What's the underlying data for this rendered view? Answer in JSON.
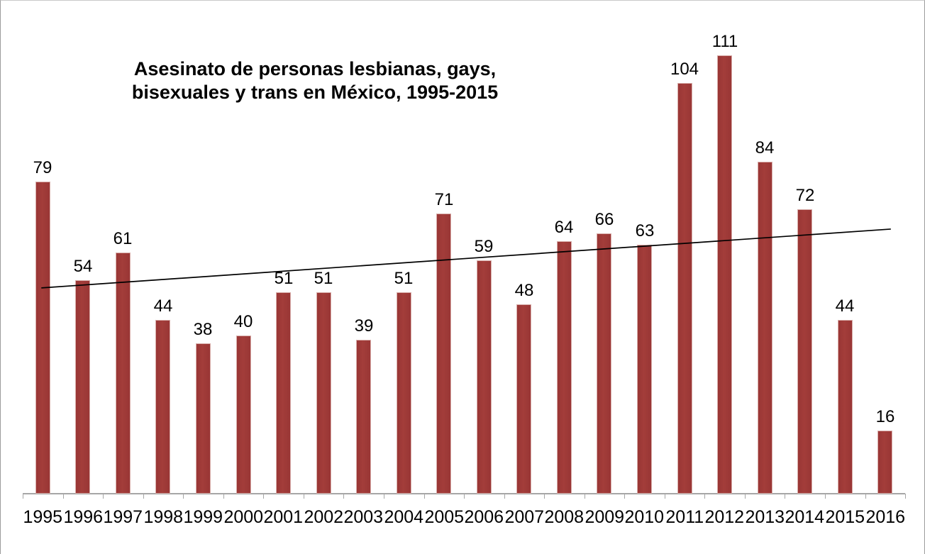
{
  "chart_data": {
    "type": "bar",
    "title": "Asesinato de personas lesbianas, gays, bisexuales y trans en México, 1995-2015",
    "title_lines": [
      "Asesinato de personas lesbianas, gays,",
      "bisexuales y trans en México, 1995-2015"
    ],
    "categories": [
      "1995",
      "1996",
      "1997",
      "1998",
      "1999",
      "2000",
      "2001",
      "2002",
      "2003",
      "2004",
      "2005",
      "2006",
      "2007",
      "2008",
      "2009",
      "2010",
      "2011",
      "2012",
      "2013",
      "2014",
      "2015",
      "2016"
    ],
    "values": [
      79,
      54,
      61,
      44,
      38,
      40,
      51,
      51,
      39,
      51,
      71,
      59,
      48,
      64,
      66,
      63,
      104,
      111,
      84,
      72,
      44,
      16
    ],
    "xlabel": "",
    "ylabel": "",
    "ylim": [
      0,
      120
    ],
    "grid": false,
    "legend": "none",
    "data_labels": true,
    "bar_color": "#993635",
    "bar_edge_color": "#d8aeaa",
    "axis_color": "#a6a6a6",
    "trendline": {
      "type": "linear",
      "color": "#000000",
      "start_value": 52.1,
      "end_value": 67.0
    }
  }
}
